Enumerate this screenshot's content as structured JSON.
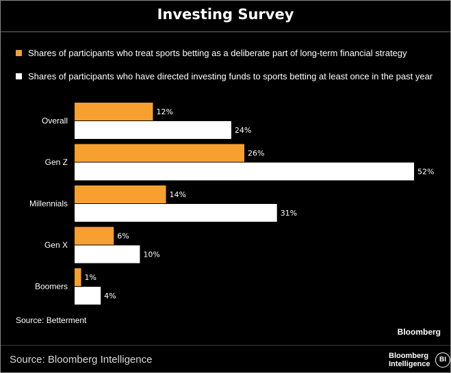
{
  "title": "Investing Survey",
  "colors": {
    "background": "#000000",
    "series_1": "#f7a030",
    "series_2": "#ffffff",
    "text": "#ffffff"
  },
  "footer": {
    "source_text": "Source: Betterment",
    "wordmark": "Bloomberg",
    "source_bi": "Source: Bloomberg Intelligence",
    "logo_line1": "Bloomberg",
    "logo_line2": "Intelligence",
    "logo_badge": "BI"
  },
  "chart_data": {
    "type": "bar",
    "orientation": "horizontal",
    "title": "Investing Survey",
    "categories": [
      "Overall",
      "Gen Z",
      "Millennials",
      "Gen X",
      "Boomers"
    ],
    "series": [
      {
        "name": "Shares of participants who treat sports betting as a deliberate part of long-term financial strategy",
        "color": "#f7a030",
        "values": [
          12,
          26,
          14,
          6,
          1
        ],
        "labels": [
          "12%",
          "26%",
          "14%",
          "6%",
          "1%"
        ]
      },
      {
        "name": "Shares of participants who have directed investing funds to sports betting at least once in the past year",
        "color": "#ffffff",
        "values": [
          24,
          52,
          31,
          10,
          4
        ],
        "labels": [
          "24%",
          "52%",
          "31%",
          "10%",
          "4%"
        ]
      }
    ],
    "xlim": [
      0,
      52
    ],
    "legend_position": "top",
    "grid": false
  }
}
